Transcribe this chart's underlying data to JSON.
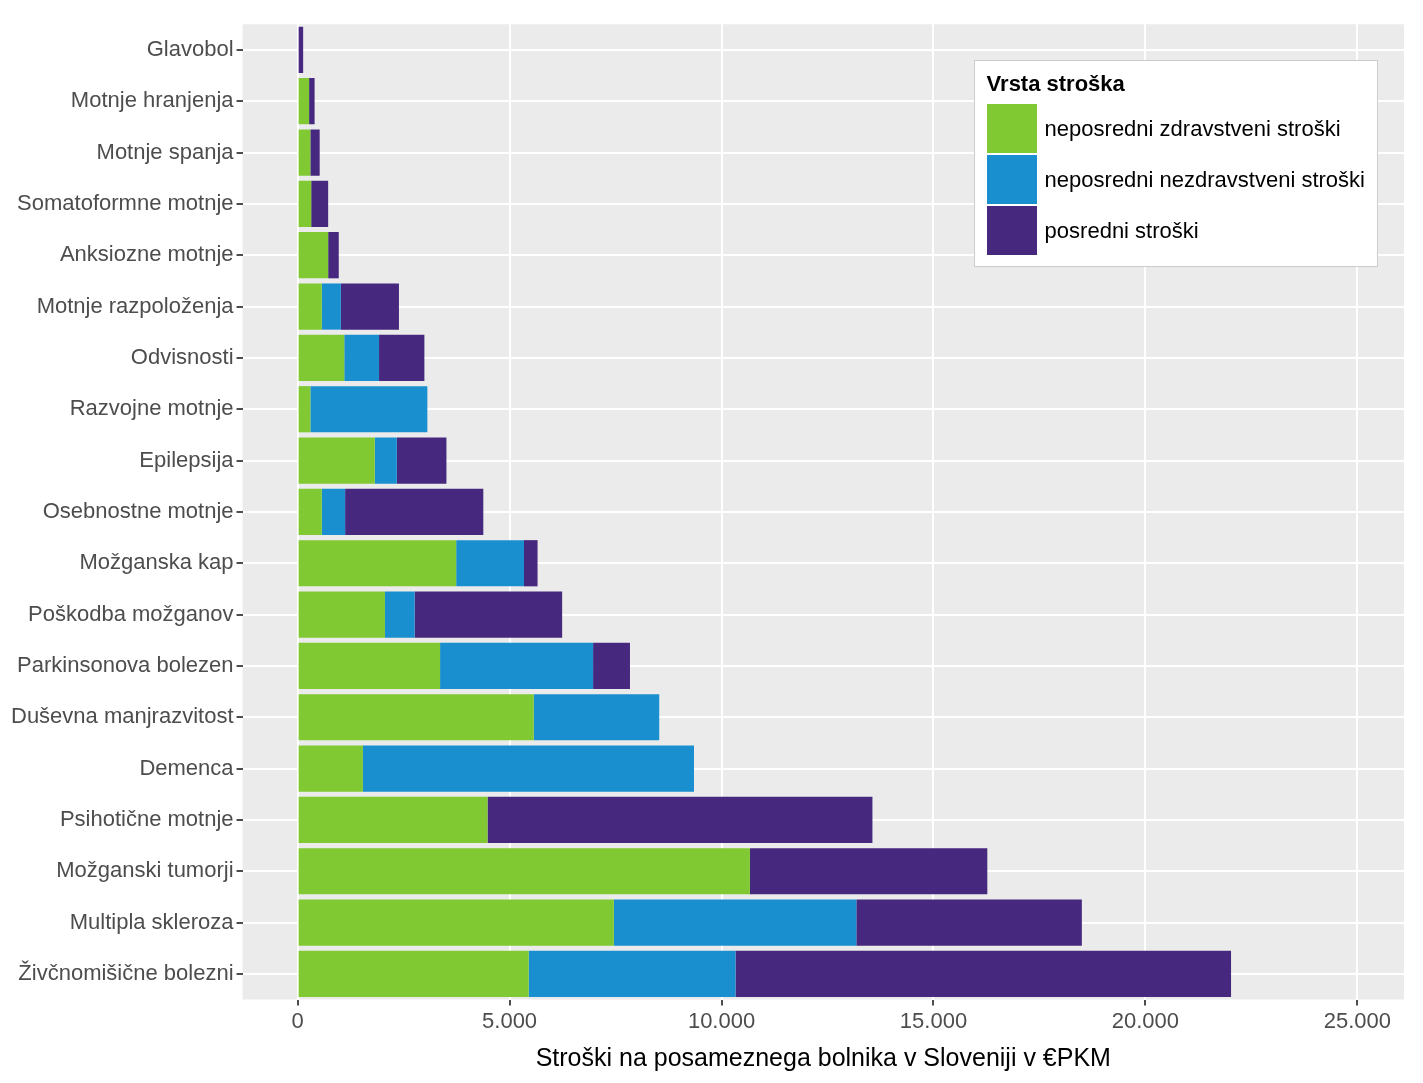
{
  "chart_data": {
    "type": "bar",
    "orientation": "horizontal",
    "stacked": true,
    "xlabel": "Stroški na posameznega bolnika v Sloveniji v €PKM",
    "legend_title": "Vrsta stroška",
    "legend": "top right",
    "grid": true,
    "categories": [
      "Glavobol",
      "Motnje hranjenja",
      "Motnje spanja",
      "Somatoformne motnje",
      "Anksiozne motnje",
      "Motnje razpoloženja",
      "Odvisnosti",
      "Razvojne motnje",
      "Epilepsija",
      "Osebnostne motnje",
      "Možganska kap",
      "Poškodba možganov",
      "Parkinsonova bolezen",
      "Duševna manjrazvitost",
      "Demenca",
      "Psihotične motnje",
      "Možganski tumorji",
      "Multipla skleroza",
      "Živčnomišične bolezni"
    ],
    "series": [
      {
        "name": "neposredni zdravstveni stroški",
        "color": "#80c932",
        "values": [
          0,
          270,
          300,
          320,
          720,
          570,
          1100,
          300,
          1820,
          570,
          3740,
          2060,
          3360,
          5570,
          1540,
          4480,
          10670,
          7460,
          5450
        ]
      },
      {
        "name": "neposredni nezdravstveni stroški",
        "color": "#1a8fcf",
        "values": [
          0,
          0,
          0,
          0,
          0,
          450,
          820,
          2760,
          520,
          550,
          1600,
          700,
          3610,
          2960,
          7810,
          0,
          0,
          5720,
          4880
        ]
      },
      {
        "name": "posredni stroški",
        "color": "#46297f",
        "values": [
          130,
          130,
          220,
          400,
          250,
          1370,
          1070,
          0,
          1170,
          3260,
          320,
          3480,
          870,
          0,
          0,
          9080,
          5600,
          5320,
          11690
        ]
      }
    ],
    "xlim": [
      -1300,
      26100
    ],
    "xticks": [
      {
        "value": 0,
        "label": "0"
      },
      {
        "value": 5000,
        "label": "5.000"
      },
      {
        "value": 10000,
        "label": "10.000"
      },
      {
        "value": 15000,
        "label": "15.000"
      },
      {
        "value": 20000,
        "label": "20.000"
      },
      {
        "value": 25000,
        "label": "25.000"
      }
    ]
  }
}
